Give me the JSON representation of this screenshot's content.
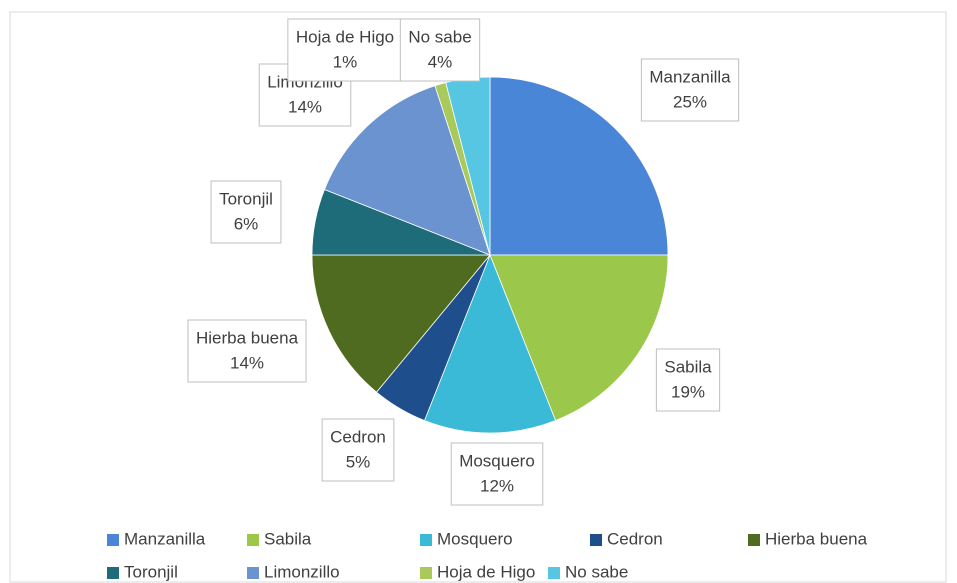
{
  "chart_data": {
    "type": "pie",
    "categories": [
      "Manzanilla",
      "Sabila",
      "Mosquero",
      "Cedron",
      "Hierba buena",
      "Toronjil",
      "Limonzillo",
      "Hoja de Higo",
      "No sabe"
    ],
    "values": [
      25,
      19,
      12,
      5,
      14,
      6,
      14,
      1,
      4
    ],
    "value_labels": [
      "25%",
      "19%",
      "12%",
      "5%",
      "14%",
      "6%",
      "14%",
      "1%",
      "4%"
    ],
    "colors": [
      "#4a86d8",
      "#9bc84b",
      "#3bbad8",
      "#1f4e8c",
      "#4f6b1f",
      "#1e6b7a",
      "#6a93d0",
      "#a9c95a",
      "#56c6e2"
    ],
    "legend": "bottom"
  }
}
